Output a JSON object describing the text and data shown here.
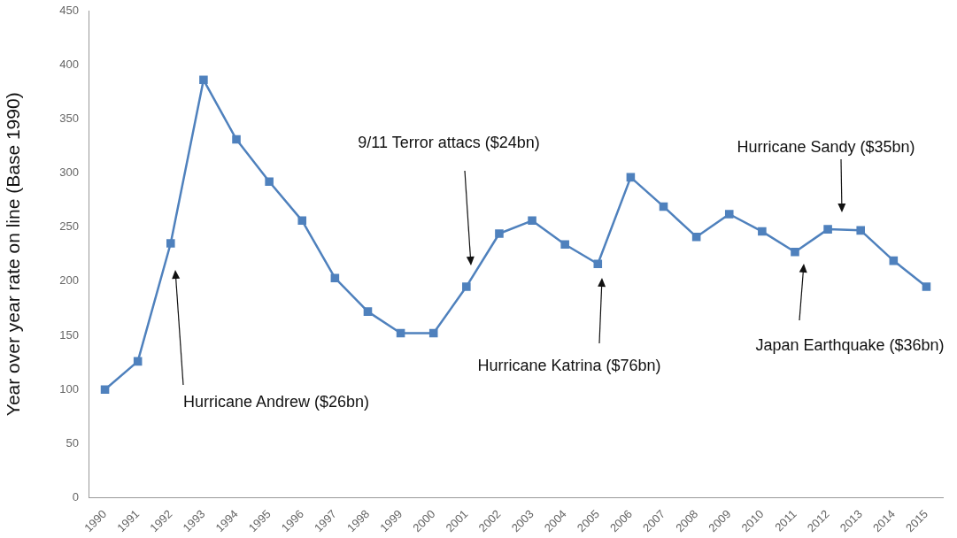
{
  "chart_data": {
    "type": "line",
    "ylabel": "Year over year rate on line (Base 1990)",
    "categories": [
      "1990",
      "1991",
      "1992",
      "1993",
      "1994",
      "1995",
      "1996",
      "1997",
      "1998",
      "1999",
      "2000",
      "2001",
      "2002",
      "2003",
      "2004",
      "2005",
      "2006",
      "2007",
      "2008",
      "2009",
      "2010",
      "2011",
      "2012",
      "2013",
      "2014",
      "2015"
    ],
    "series": [
      {
        "color": "#4f81bd",
        "values": [
          100,
          126,
          235,
          386,
          331,
          292,
          256,
          203,
          172,
          152,
          152,
          195,
          244,
          256,
          234,
          216,
          296,
          269,
          241,
          262,
          246,
          227,
          248,
          247,
          219,
          195
        ]
      }
    ],
    "ylim": [
      0,
      450
    ],
    "yticks": [
      0,
      50,
      100,
      150,
      200,
      250,
      300,
      350,
      400,
      450
    ],
    "grid": false,
    "legend": false,
    "marker": "square",
    "line_style": "solid",
    "annotations": [
      "Hurricane Andrew ($26bn)",
      "9/11 Terror attacs ($24bn)",
      "Hurricane Katrina ($76bn)",
      "Japan Earthquake ($36bn)",
      "Hurricane Sandy ($35bn)"
    ]
  }
}
